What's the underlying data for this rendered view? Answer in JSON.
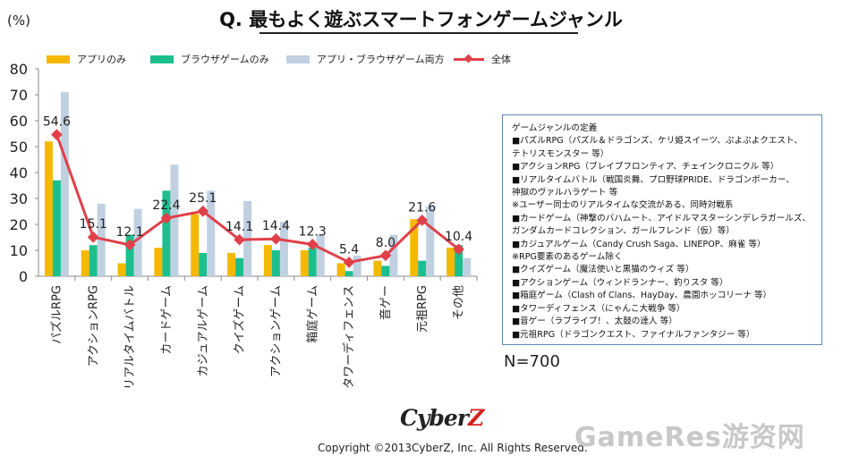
{
  "header": {
    "title": "Q. 最もよく遊ぶスマートフォンゲームジャンル"
  },
  "chart_data": {
    "type": "bar",
    "title": "Q. 最もよく遊ぶスマートフォンゲームジャンル",
    "ylabel": "(%)",
    "xlabel": "",
    "ylim": [
      0,
      80
    ],
    "yticks": [
      "0",
      "10",
      "20",
      "30",
      "40",
      "50",
      "60",
      "70",
      "80"
    ],
    "grid": false,
    "legend_position": "top",
    "categories": [
      "パズルRPG",
      "アクションRPG",
      "リアルタイムバトル",
      "カードゲーム",
      "カジュアルゲーム",
      "クイズゲーム",
      "アクションゲーム",
      "箱庭ゲーム",
      "タワーディフェンス",
      "音ゲー",
      "元祖RPG",
      "その他"
    ],
    "series": [
      {
        "name": "アプリのみ",
        "type": "bar",
        "color": "#f5b800",
        "values": [
          52,
          10,
          5,
          11,
          24,
          9,
          12,
          10,
          5,
          6,
          22,
          11
        ]
      },
      {
        "name": "ブラウザゲームのみ",
        "type": "bar",
        "color": "#1bbf8e",
        "values": [
          37,
          12,
          16,
          33,
          9,
          7,
          10,
          11,
          2,
          4,
          6,
          12
        ]
      },
      {
        "name": "アプリ・ブラウザゲーム両方",
        "type": "bar",
        "color": "#c0d0e0",
        "values": [
          71,
          28,
          26,
          43,
          33,
          29,
          21,
          16,
          8,
          16,
          27,
          7
        ]
      },
      {
        "name": "全体",
        "type": "line",
        "color": "#e0404a",
        "values": [
          54.6,
          15.1,
          12.1,
          22.4,
          25.1,
          14.1,
          14.4,
          12.3,
          5.4,
          8.0,
          21.6,
          10.4
        ],
        "labels": [
          "54.6",
          "15.1",
          "12.1",
          "22.4",
          "25.1",
          "14.1",
          "14.4",
          "12.3",
          "5.4",
          "8.0",
          "21.6",
          "10.4"
        ]
      }
    ]
  },
  "definitions": {
    "lines": [
      "ゲームジャンルの定義",
      "■パズルRPG（パズル＆ドラゴンズ、ケリ姫スイーツ、ぷよぷよクエスト、",
      "テトリスモンスター 等）",
      "■アクションRPG（ブレイブフロンティア、チェインクロニクル 等）",
      "■リアルタイムバトル（戦国炎舞、プロ野球PRIDE、ドラゴンポーカー、",
      "神獄のヴァルハラゲート 等",
      "※ユーザー同士のリアルタイムな交流がある、同時対戦系",
      "■カードゲーム（神撃のバハムート、アイドルマスターシンデレラガールズ、",
      "ガンダムカードコレクション、ガールフレンド（仮）等）",
      "■カジュアルゲーム（Candy Crush Saga、LINEPOP、麻雀 等）",
      "※RPG要素のあるゲーム除く",
      "■クイズゲーム（魔法使いと黒猫のウィズ 等）",
      "■アクションゲーム（ウィンドランナー、釣りスタ 等）",
      "■箱庭ゲーム（Clash of Clans、HayDay、農園ホッコリーナ 等）",
      "■タワーディフェンス（にゃんこ大戦争 等）",
      "■音ゲー（ラブライブ！、太鼓の達人 等）",
      "■元祖RPG（ドラゴンクエスト、ファイナルファンタジー 等）"
    ]
  },
  "sample_size": "N=700",
  "logo": {
    "prefix": "Cyber",
    "suffix": "Z"
  },
  "footer": {
    "copyright": "Copyright ©2013CyberZ, Inc.  All Rights Reserved."
  },
  "watermark": "GameRes游资网"
}
